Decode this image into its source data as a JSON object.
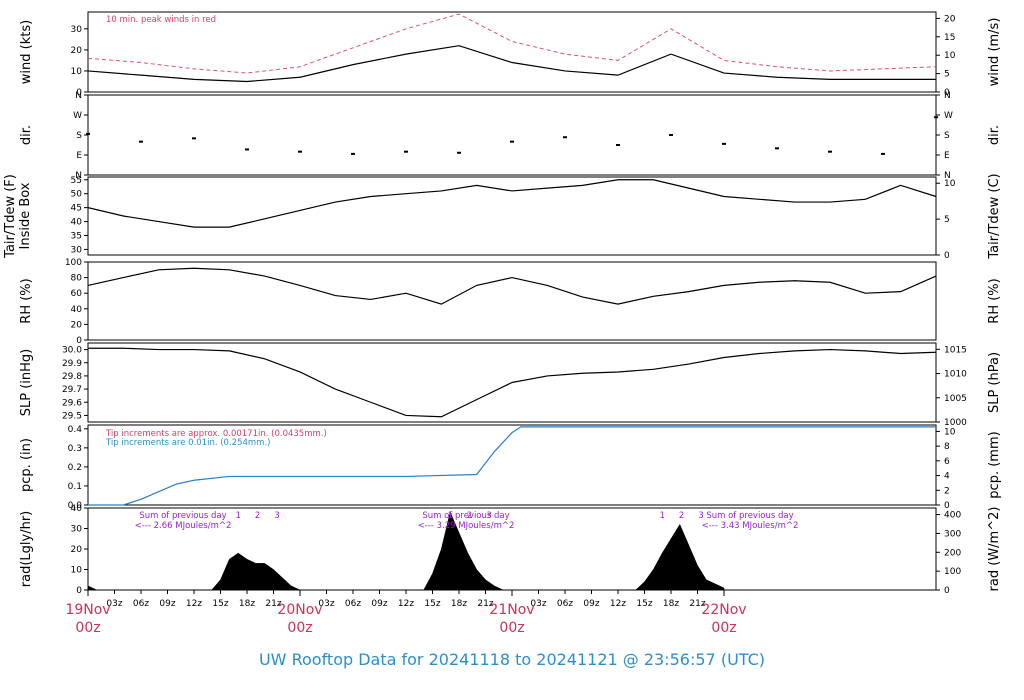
{
  "footer": {
    "title": "UW Rooftop Data for 20241118  to  20241121 @ 23:56:57  (UTC)"
  },
  "x_axis": {
    "hour_ticks": [
      "03z",
      "06z",
      "09z",
      "12z",
      "15z",
      "18z",
      "21z"
    ],
    "day_labels": [
      {
        "date": "19Nov",
        "time": "00z"
      },
      {
        "date": "20Nov",
        "time": "00z"
      },
      {
        "date": "21Nov",
        "time": "00z"
      },
      {
        "date": "22Nov",
        "time": "00z"
      }
    ]
  },
  "annotations": {
    "wind_note": "10 min. peak winds in red",
    "pcp_note_1": "Tip increments are approx. 0.00171in. (0.0435mm.)",
    "pcp_note_2": "Tip increments are 0.01in. (0.254mm.)",
    "rad_notes": [
      {
        "line1": "Sum of previous day",
        "line2": "<--- 2.66 MJoules/m^2"
      },
      {
        "line1": "Sum of previous day",
        "line2": "<--- 3.29 MJoules/m^2"
      },
      {
        "line1": "Sum of previous day",
        "line2": "<--- 3.43 MJoules/m^2"
      }
    ],
    "rad_marks": [
      "1",
      "2",
      "3"
    ]
  },
  "colors": {
    "peak": "#e0506e",
    "pcp": "#2a7fc8",
    "day_label": "#cc3355",
    "footer": "#2a8fd0",
    "note": "#9922cc"
  },
  "chart_data": [
    {
      "type": "line",
      "name": "wind",
      "ylabel": "wind (kts)",
      "ylabel_right": "wind (m/s)",
      "ylim": [
        0,
        38
      ],
      "yticks": [
        "0",
        "10",
        "20",
        "30"
      ],
      "yticks_right": [
        "0",
        "5",
        "10",
        "15",
        "20"
      ],
      "x": [
        0,
        6,
        12,
        18,
        24,
        30,
        36,
        42,
        48,
        54,
        60,
        66,
        72,
        78,
        84,
        90,
        96
      ],
      "series": [
        {
          "name": "mean",
          "values": [
            10,
            8,
            6,
            5,
            7,
            13,
            18,
            22,
            14,
            10,
            8,
            18,
            9,
            7,
            6,
            6,
            6
          ]
        },
        {
          "name": "peak",
          "values": [
            16,
            14,
            11,
            9,
            12,
            21,
            30,
            37,
            24,
            18,
            15,
            30,
            15,
            12,
            10,
            11,
            12
          ]
        }
      ]
    },
    {
      "type": "scatter",
      "name": "dir",
      "ylabel": "dir.",
      "ylabel_right": "dir.",
      "yticks": [
        "N",
        "E",
        "S",
        "W",
        "N"
      ],
      "ylim": [
        0,
        360
      ],
      "x": [
        0,
        6,
        12,
        18,
        24,
        30,
        36,
        42,
        48,
        54,
        60,
        66,
        72,
        78,
        84,
        90,
        96
      ],
      "values": [
        185,
        150,
        165,
        115,
        105,
        95,
        105,
        100,
        150,
        170,
        135,
        180,
        140,
        120,
        105,
        95,
        260
      ]
    },
    {
      "type": "line",
      "name": "tair",
      "ylabel": "Tair/Tdew (F)\nInside Box",
      "ylabel_right": "Tair/Tdew (C)",
      "ylim": [
        28,
        56
      ],
      "yticks": [
        "30",
        "35",
        "40",
        "45",
        "50",
        "55"
      ],
      "yticks_right": [
        "0",
        "5",
        "10"
      ],
      "x": [
        0,
        4,
        8,
        12,
        16,
        20,
        24,
        28,
        32,
        36,
        40,
        44,
        48,
        52,
        56,
        60,
        64,
        68,
        72,
        76,
        80,
        84,
        88,
        92,
        96
      ],
      "values": [
        45,
        42,
        40,
        38,
        38,
        41,
        44,
        47,
        49,
        50,
        51,
        53,
        51,
        52,
        53,
        55,
        55,
        52,
        49,
        48,
        47,
        47,
        48,
        53,
        49
      ]
    },
    {
      "type": "line",
      "name": "rh",
      "ylabel": "RH (%)",
      "ylabel_right": "RH (%)",
      "ylim": [
        0,
        100
      ],
      "yticks": [
        "0",
        "20",
        "40",
        "60",
        "80",
        "100"
      ],
      "x": [
        0,
        4,
        8,
        12,
        16,
        20,
        24,
        28,
        32,
        36,
        40,
        44,
        48,
        52,
        56,
        60,
        64,
        68,
        72,
        76,
        80,
        84,
        88,
        92,
        96
      ],
      "values": [
        70,
        80,
        90,
        92,
        90,
        82,
        70,
        57,
        52,
        60,
        46,
        70,
        80,
        70,
        55,
        46,
        56,
        62,
        70,
        74,
        76,
        74,
        60,
        62,
        82
      ]
    },
    {
      "type": "line",
      "name": "slp",
      "ylabel": "SLP (inHg)",
      "ylabel_right": "SLP (hPa)",
      "ylim": [
        29.45,
        30.05
      ],
      "yticks": [
        "29.5",
        "29.6",
        "29.7",
        "29.8",
        "29.9",
        "30.0"
      ],
      "yticks_right": [
        "1000",
        "1005",
        "1010",
        "1015"
      ],
      "x": [
        0,
        4,
        8,
        12,
        16,
        20,
        24,
        28,
        32,
        36,
        40,
        44,
        48,
        52,
        56,
        60,
        64,
        68,
        72,
        76,
        80,
        84,
        88,
        92,
        96
      ],
      "values": [
        30.01,
        30.01,
        30.0,
        30.0,
        29.99,
        29.93,
        29.83,
        29.7,
        29.6,
        29.5,
        29.49,
        29.62,
        29.75,
        29.8,
        29.82,
        29.83,
        29.85,
        29.89,
        29.94,
        29.97,
        29.99,
        30.0,
        29.99,
        29.97,
        29.98
      ]
    },
    {
      "type": "line",
      "name": "pcp",
      "ylabel": "pcp. (in)",
      "ylabel_right": "pcp. (mm)",
      "ylim": [
        0,
        0.42
      ],
      "yticks": [
        "0.0",
        "0.1",
        "0.2",
        "0.3",
        "0.4"
      ],
      "yticks_right": [
        "0",
        "2",
        "4",
        "6",
        "8",
        "10"
      ],
      "x": [
        0,
        4,
        6,
        8,
        10,
        12,
        16,
        24,
        36,
        44,
        46,
        48,
        49,
        52,
        60,
        72,
        84,
        96
      ],
      "values": [
        0,
        0,
        0.03,
        0.07,
        0.11,
        0.13,
        0.15,
        0.15,
        0.15,
        0.16,
        0.28,
        0.38,
        0.41,
        0.41,
        0.41,
        0.41,
        0.41,
        0.41
      ]
    },
    {
      "type": "area",
      "name": "rad",
      "ylabel": "rad(Lgly/hr)",
      "ylabel_right": "rad (W/m^2)",
      "ylim": [
        0,
        40
      ],
      "yticks": [
        "0",
        "10",
        "20",
        "30",
        "40"
      ],
      "yticks_right": [
        "0",
        "100",
        "200",
        "300",
        "400"
      ],
      "x": [
        0,
        1,
        14,
        15,
        16,
        17,
        18,
        19,
        20,
        21,
        22,
        23,
        24,
        38,
        39,
        40,
        41,
        42,
        43,
        44,
        45,
        46,
        47,
        48,
        62,
        63,
        64,
        65,
        66,
        67,
        68,
        69,
        70,
        71,
        72
      ],
      "values": [
        2,
        0,
        0,
        5,
        15,
        18,
        15,
        13,
        13,
        10,
        6,
        2,
        0,
        0,
        8,
        20,
        38,
        28,
        18,
        10,
        5,
        2,
        0,
        0,
        0,
        4,
        10,
        18,
        25,
        32,
        22,
        12,
        5,
        3,
        1
      ]
    }
  ]
}
